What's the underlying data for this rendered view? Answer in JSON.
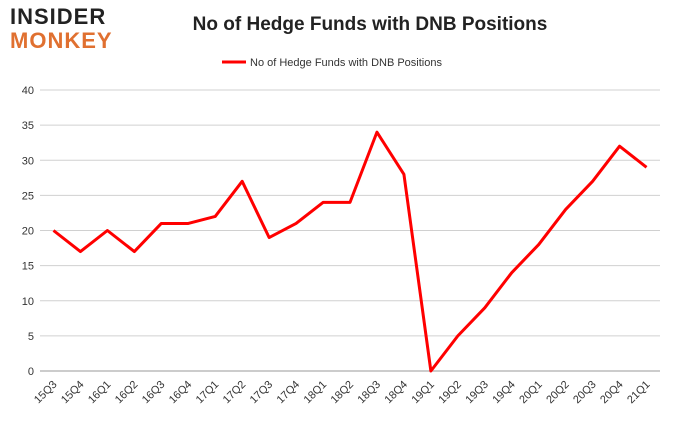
{
  "logo": {
    "line1": "INSIDER",
    "line2": "MONKEY"
  },
  "chart_data": {
    "type": "line",
    "title": "No of Hedge Funds with DNB Positions",
    "categories": [
      "15Q3",
      "15Q4",
      "16Q1",
      "16Q2",
      "16Q3",
      "16Q4",
      "17Q1",
      "17Q2",
      "17Q3",
      "17Q4",
      "18Q1",
      "18Q2",
      "18Q3",
      "18Q4",
      "19Q1",
      "19Q2",
      "19Q3",
      "19Q4",
      "20Q1",
      "20Q2",
      "20Q3",
      "20Q4",
      "21Q1"
    ],
    "series": [
      {
        "name": "No of Hedge Funds with DNB Positions",
        "color": "#ff0000",
        "values": [
          20,
          17,
          20,
          17,
          21,
          21,
          22,
          27,
          19,
          21,
          24,
          24,
          34,
          28,
          0,
          5,
          9,
          14,
          18,
          23,
          27,
          32,
          29
        ]
      }
    ],
    "ylim": [
      0,
      40
    ],
    "yticks": [
      0,
      5,
      10,
      15,
      20,
      25,
      30,
      35,
      40
    ],
    "grid": true,
    "legend": "top"
  }
}
